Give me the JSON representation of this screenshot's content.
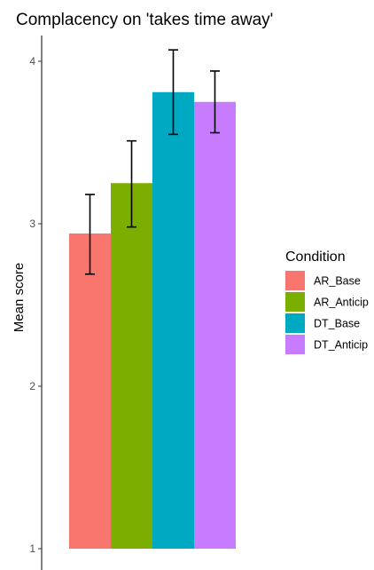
{
  "chart_data": {
    "type": "bar",
    "title": "Complacency on 'takes time away'",
    "xlabel": "",
    "ylabel": "Mean score",
    "categories": [
      "AR_Base",
      "AR_Anticip",
      "DT_Base",
      "DT_Anticip"
    ],
    "values": [
      2.94,
      3.25,
      3.81,
      3.75
    ],
    "error_low": [
      2.69,
      2.98,
      3.55,
      3.56
    ],
    "error_high": [
      3.18,
      3.51,
      4.07,
      3.94
    ],
    "colors": [
      "#F8766D",
      "#7CAE00",
      "#00A9C2",
      "#C77CFF"
    ],
    "ylim": [
      1,
      4.15
    ],
    "yticks": [
      1,
      2,
      3,
      4
    ],
    "grid": false,
    "legend": {
      "title": "Condition",
      "placement": "right",
      "entries": [
        "AR_Base",
        "AR_Anticip",
        "DT_Base",
        "DT_Anticip"
      ]
    }
  }
}
